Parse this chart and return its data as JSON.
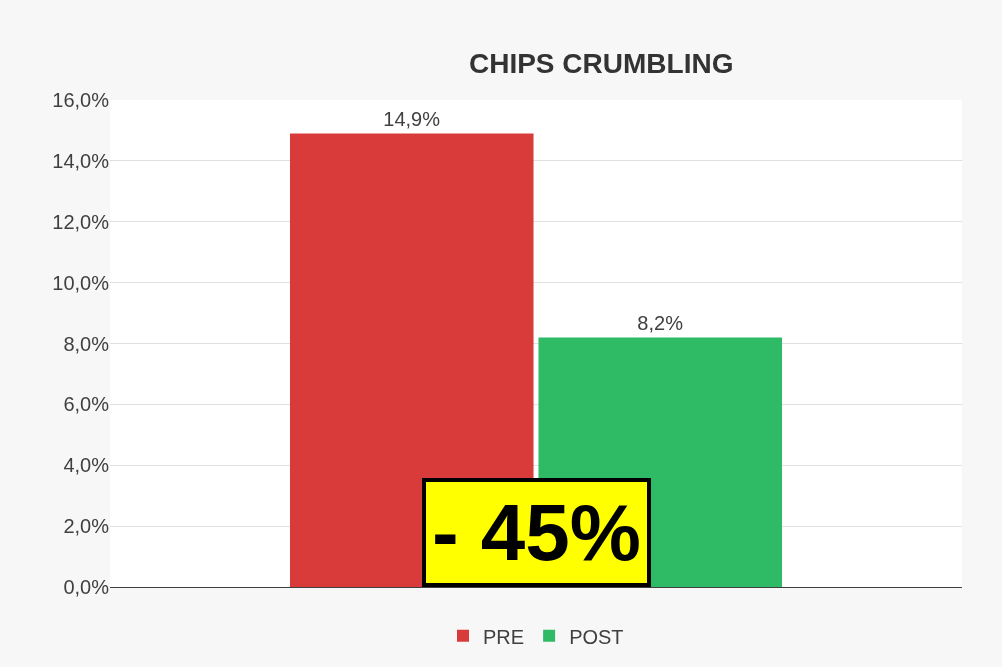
{
  "chart_data": {
    "type": "bar",
    "title": "CHIPS CRUMBLING",
    "categories": [
      null
    ],
    "series": [
      {
        "name": "PRE",
        "color": "#d93a3a",
        "values": [
          14.9
        ],
        "value_labels": [
          "14,9%"
        ]
      },
      {
        "name": "POST",
        "color": "#2fba66",
        "values": [
          8.2
        ],
        "value_labels": [
          "8,2%"
        ]
      }
    ],
    "ylim": [
      0,
      16
    ],
    "yticks": [
      {
        "value": 0,
        "label": "0,0%"
      },
      {
        "value": 2,
        "label": "2,0%"
      },
      {
        "value": 4,
        "label": "4,0%"
      },
      {
        "value": 6,
        "label": "6,0%"
      },
      {
        "value": 8,
        "label": "8,0%"
      },
      {
        "value": 10,
        "label": "10,0%"
      },
      {
        "value": 12,
        "label": "12,0%"
      },
      {
        "value": 14,
        "label": "14,0%"
      },
      {
        "value": 16,
        "label": "16,0%"
      }
    ],
    "grid": "y",
    "legend": "bottom",
    "tick_labels": "y",
    "annotations": [
      "- 45%"
    ]
  }
}
